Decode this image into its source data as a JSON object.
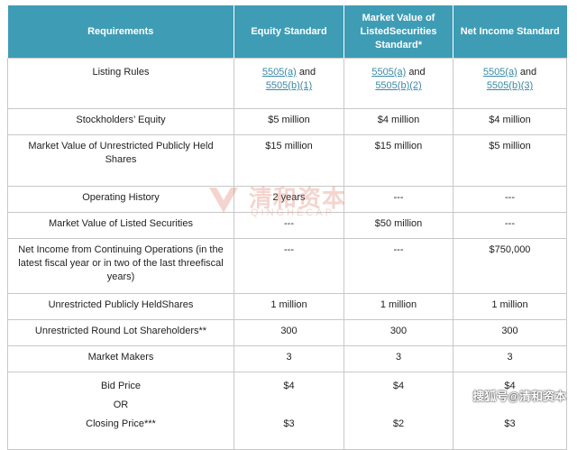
{
  "headers": [
    "Requirements",
    "Equity Standard",
    "Market Value of ListedSecurities Standard*",
    "Net Income Standard"
  ],
  "listing_rules": {
    "label": "Listing Rules",
    "equity": {
      "link1": "5505(a)",
      "and": "and",
      "link2": "5505(b)(1)"
    },
    "mvls": {
      "link1": "5505(a)",
      "and": "and",
      "link2": "5505(b)(2)"
    },
    "net_income": {
      "link1": "5505(a)",
      "and": "and",
      "link2": "5505(b)(3)"
    }
  },
  "rows": {
    "stockholders_equity": {
      "label": "Stockholders’ Equity",
      "equity": "$5 million",
      "mvls": "$4 million",
      "net_income": "$4 million"
    },
    "mv_unrestricted": {
      "label": "Market Value of Unrestricted Publicly Held Shares",
      "equity": "$15 million",
      "mvls": "$15 million",
      "net_income": "$5 million"
    },
    "operating_history": {
      "label": "Operating History",
      "equity": "2 years",
      "mvls": "---",
      "net_income": "---"
    },
    "mv_listed": {
      "label": "Market Value of Listed Securities",
      "equity": "---",
      "mvls": "$50 million",
      "net_income": "---"
    },
    "net_income_cont": {
      "label": "Net Income from Continuing  Operations (in the latest fiscal year or in two of the last threefiscal years)",
      "equity": "---",
      "mvls": "---",
      "net_income": "$750,000"
    },
    "unrestricted_shares": {
      "label": "Unrestricted Publicly HeldShares",
      "equity": "1 million",
      "mvls": "1 million",
      "net_income": "1 million"
    },
    "round_lot": {
      "label": "Unrestricted Round Lot Shareholders**",
      "equity": "300",
      "mvls": "300",
      "net_income": "300"
    },
    "market_makers": {
      "label": "Market Makers",
      "equity": "3",
      "mvls": "3",
      "net_income": "3"
    }
  },
  "bid": {
    "label_bid": "Bid Price",
    "label_or": "OR",
    "label_closing": "Closing Price***",
    "equity_bid": "$4",
    "equity_close": "$3",
    "mvls_bid": "$4",
    "mvls_close": "$2",
    "net_income_bid": "$4",
    "net_income_close": "$3"
  },
  "watermark": {
    "cn": "清和资本",
    "en": "QINGHECAP"
  },
  "credit": "搜狐号@清和资本",
  "colors": {
    "header_bg": "#3f9cb5",
    "link": "#3a89a8",
    "watermark": "#e07b6a"
  }
}
